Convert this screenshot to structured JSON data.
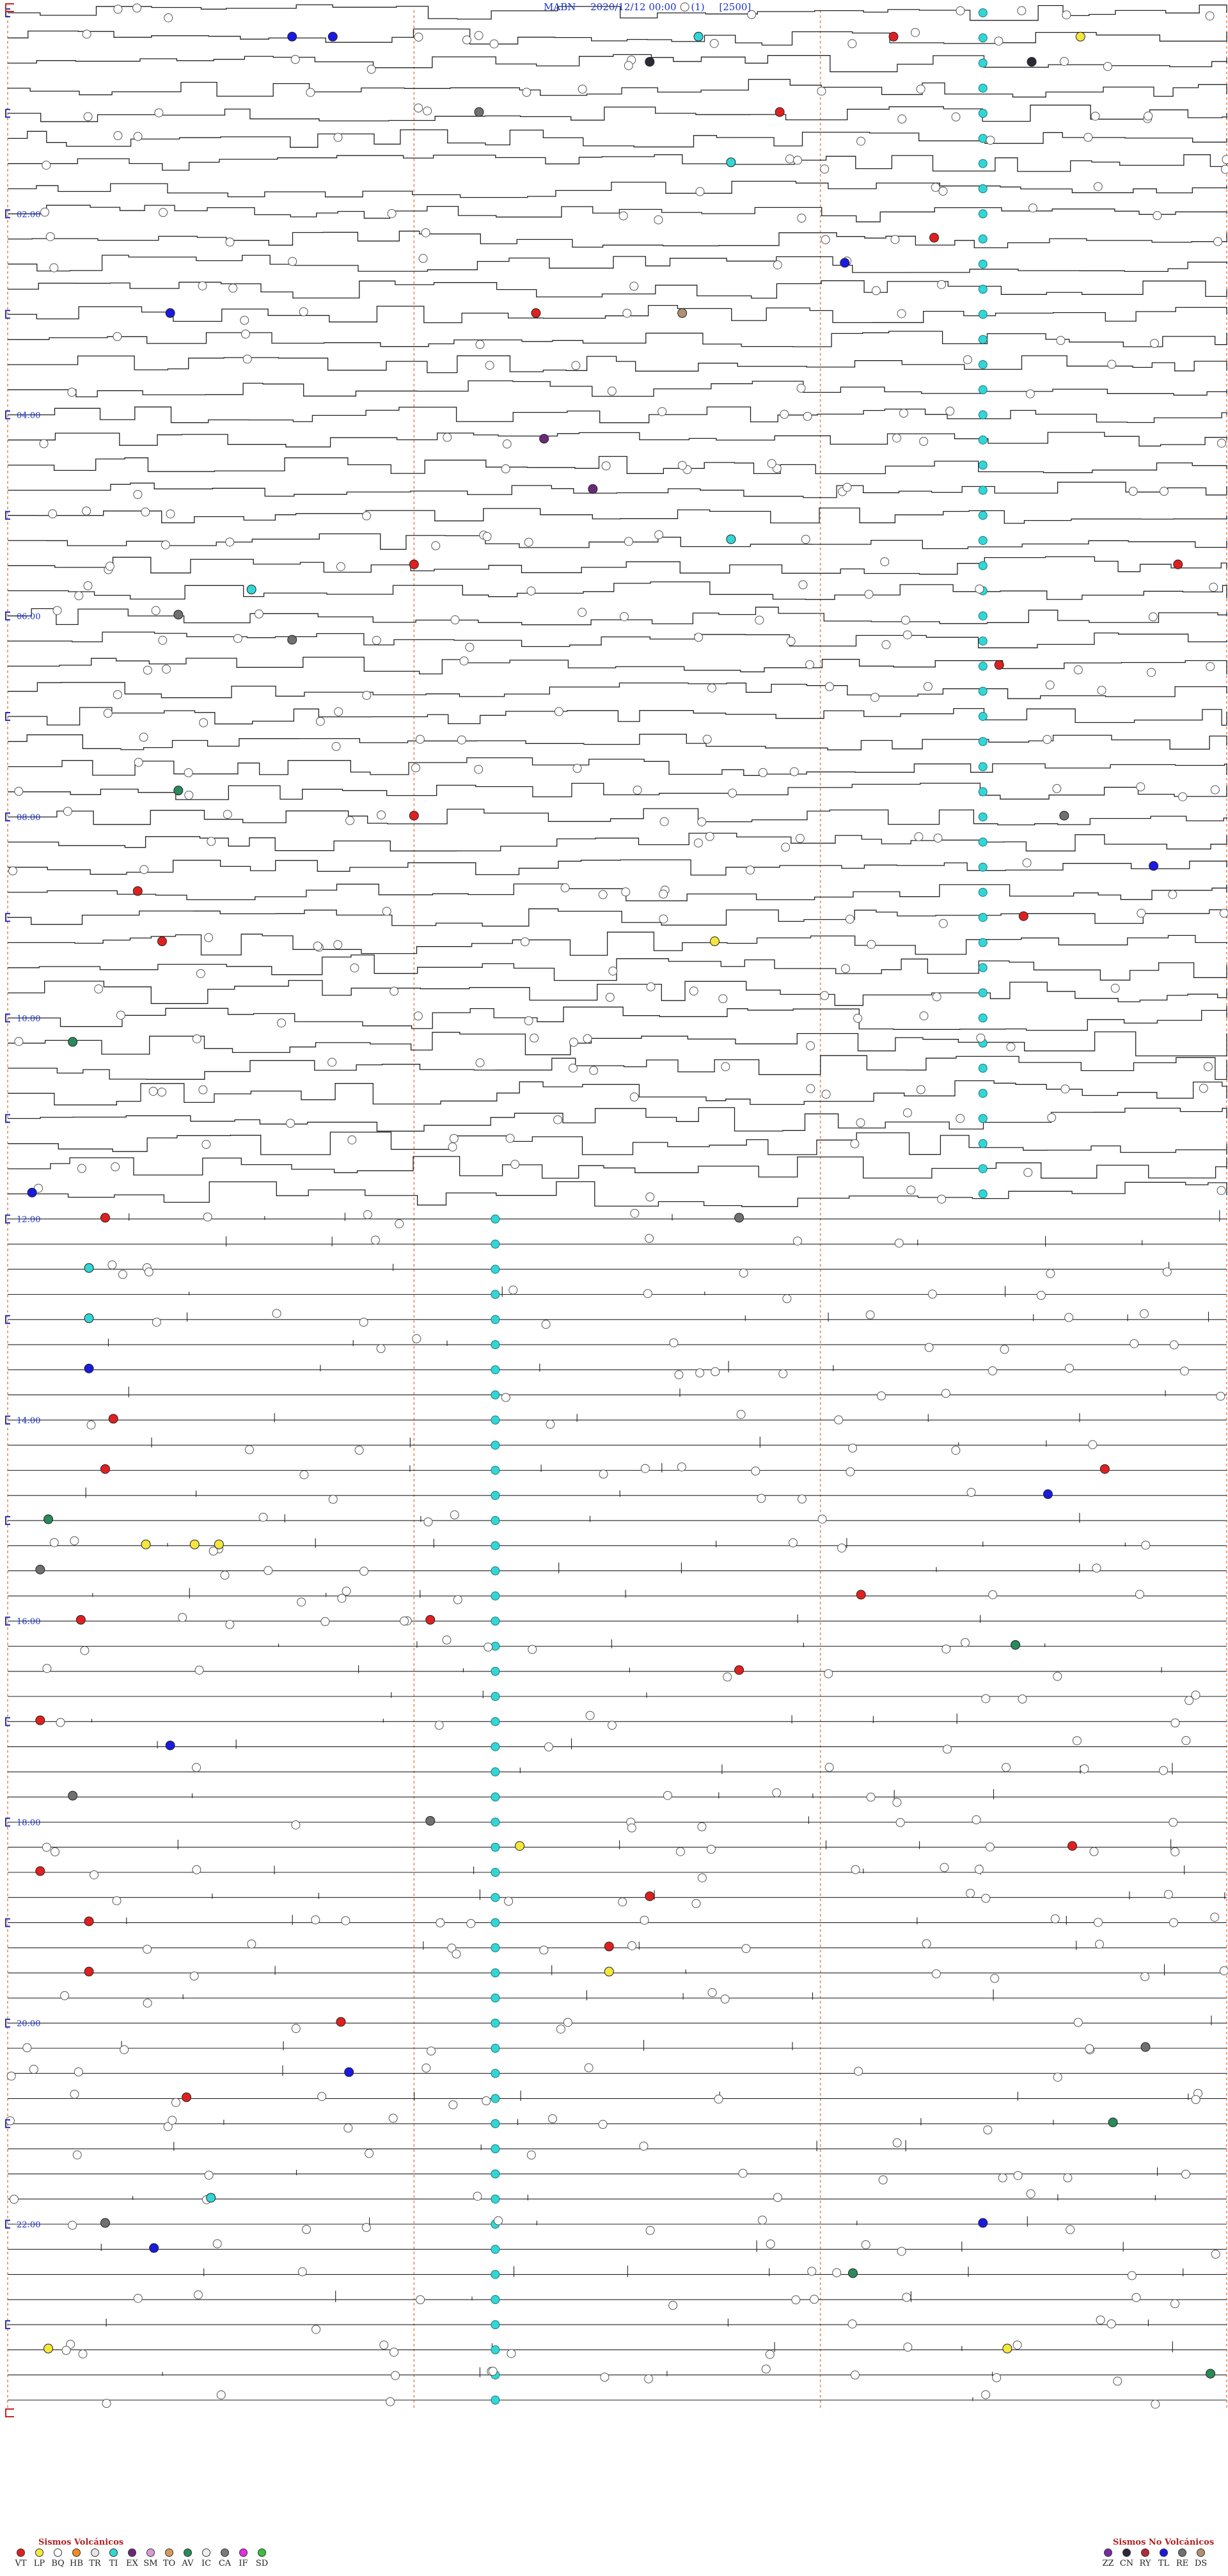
{
  "header": {
    "station": "MABN",
    "datetime": "2020/12/12 00:00",
    "channel": "(1)",
    "scale": "[2500]"
  },
  "legend": {
    "volcanic_title": "Sismos Volcánicos",
    "nonvolcanic_title": "Sismos No Volcánicos",
    "volcanic": [
      {
        "code": "VT",
        "color": "#e02020"
      },
      {
        "code": "LP",
        "color": "#f5e63c"
      },
      {
        "code": "BQ",
        "color": "#ffffff"
      },
      {
        "code": "HB",
        "color": "#f08a24"
      },
      {
        "code": "TR",
        "color": "#e6e6e6"
      },
      {
        "code": "TI",
        "color": "#33d6d6"
      },
      {
        "code": "EX",
        "color": "#6a2a7a"
      },
      {
        "code": "SM",
        "color": "#d89ad8"
      },
      {
        "code": "TO",
        "color": "#d89a5a"
      },
      {
        "code": "AV",
        "color": "#2a8a5a"
      },
      {
        "code": "IC",
        "color": "#f0f0f0"
      },
      {
        "code": "CA",
        "color": "#7a7a7a"
      },
      {
        "code": "IF",
        "color": "#e030e0"
      },
      {
        "code": "SD",
        "color": "#3cc03c"
      }
    ],
    "nonvolcanic": [
      {
        "code": "ZZ",
        "color": "#7a2aa0"
      },
      {
        "code": "CN",
        "color": "#2a2a3a"
      },
      {
        "code": "RY",
        "color": "#b02a40"
      },
      {
        "code": "TL",
        "color": "#1a1ae0"
      },
      {
        "code": "RE",
        "color": "#707070"
      },
      {
        "code": "DS",
        "color": "#b09070"
      }
    ]
  },
  "chart_data": {
    "type": "helicorder",
    "station": "MABN",
    "start": "2020/12/12 00:00",
    "rows": 96,
    "minutes_per_row": 15,
    "time_labels": [
      "02:00",
      "04:00",
      "06:00",
      "08:00",
      "10:00",
      "12:00",
      "14:00",
      "16:00",
      "18:00",
      "20:00",
      "22:00"
    ],
    "colors": {
      "trace": "#222222",
      "hour_marker": "#2233bb",
      "guide": "#e98a5a",
      "time_label": "#1a33cc"
    },
    "continuous_ti_column": [
      {
        "from_row": 0,
        "to_row": 48,
        "minute": 12
      },
      {
        "from_row": 48,
        "to_row": 96,
        "minute": 6
      }
    ],
    "events": [
      {
        "row": 1,
        "minute": 13.2,
        "type": "LP"
      },
      {
        "row": 1,
        "minute": 8.5,
        "type": "TI"
      },
      {
        "row": 1,
        "minute": 10.9,
        "type": "VT"
      },
      {
        "row": 1,
        "minute": 3.5,
        "type": "TL"
      },
      {
        "row": 1,
        "minute": 4,
        "type": "TL"
      },
      {
        "row": 2,
        "minute": 12.6,
        "type": "CN"
      },
      {
        "row": 2,
        "minute": 7.9,
        "type": "CN"
      },
      {
        "row": 4,
        "minute": 9.5,
        "type": "VT"
      },
      {
        "row": 4,
        "minute": 5.8,
        "type": "RE"
      },
      {
        "row": 6,
        "minute": 8.9,
        "type": "TI"
      },
      {
        "row": 9,
        "minute": 11.4,
        "type": "VT"
      },
      {
        "row": 10,
        "minute": 10.3,
        "type": "TL"
      },
      {
        "row": 12,
        "minute": 6.5,
        "type": "VT"
      },
      {
        "row": 12,
        "minute": 8.3,
        "type": "DS"
      },
      {
        "row": 12,
        "minute": 2,
        "type": "TL"
      },
      {
        "row": 17,
        "minute": 6.6,
        "type": "EX"
      },
      {
        "row": 19,
        "minute": 7.2,
        "type": "EX"
      },
      {
        "row": 21,
        "minute": 8.9,
        "type": "TI"
      },
      {
        "row": 22,
        "minute": 5,
        "type": "VT"
      },
      {
        "row": 22,
        "minute": 14.4,
        "type": "VT"
      },
      {
        "row": 23,
        "minute": 3,
        "type": "TI"
      },
      {
        "row": 24,
        "minute": 2.1,
        "type": "RE"
      },
      {
        "row": 25,
        "minute": 3.5,
        "type": "RE"
      },
      {
        "row": 26,
        "minute": 12.2,
        "type": "VT"
      },
      {
        "row": 31,
        "minute": 2.1,
        "type": "AV"
      },
      {
        "row": 32,
        "minute": 5,
        "type": "VT"
      },
      {
        "row": 32,
        "minute": 13,
        "type": "RE"
      },
      {
        "row": 34,
        "minute": 14.1,
        "type": "TL"
      },
      {
        "row": 35,
        "minute": 1.6,
        "type": "VT"
      },
      {
        "row": 36,
        "minute": 12.5,
        "type": "VT"
      },
      {
        "row": 37,
        "minute": 8.7,
        "type": "LP"
      },
      {
        "row": 37,
        "minute": 1.9,
        "type": "VT"
      },
      {
        "row": 41,
        "minute": 0.8,
        "type": "AV"
      },
      {
        "row": 47,
        "minute": 0.3,
        "type": "TL"
      },
      {
        "row": 48,
        "minute": 1.2,
        "type": "VT"
      },
      {
        "row": 48,
        "minute": 9,
        "type": "RE"
      },
      {
        "row": 50,
        "minute": 1,
        "type": "TI"
      },
      {
        "row": 52,
        "minute": 1,
        "type": "TI"
      },
      {
        "row": 54,
        "minute": 1,
        "type": "TL"
      },
      {
        "row": 56,
        "minute": 1.3,
        "type": "VT"
      },
      {
        "row": 58,
        "minute": 1.2,
        "type": "VT"
      },
      {
        "row": 58,
        "minute": 13.5,
        "type": "VT"
      },
      {
        "row": 59,
        "minute": 12.8,
        "type": "TL"
      },
      {
        "row": 60,
        "minute": 0.5,
        "type": "AV"
      },
      {
        "row": 61,
        "minute": 1.7,
        "type": "LP"
      },
      {
        "row": 61,
        "minute": 2.3,
        "type": "LP"
      },
      {
        "row": 61,
        "minute": 2.6,
        "type": "LP"
      },
      {
        "row": 62,
        "minute": 0.4,
        "type": "RE"
      },
      {
        "row": 63,
        "minute": 10.5,
        "type": "VT"
      },
      {
        "row": 64,
        "minute": 0.9,
        "type": "VT"
      },
      {
        "row": 64,
        "minute": 5.2,
        "type": "VT"
      },
      {
        "row": 65,
        "minute": 12.4,
        "type": "AV"
      },
      {
        "row": 66,
        "minute": 9,
        "type": "VT"
      },
      {
        "row": 68,
        "minute": 0.4,
        "type": "VT"
      },
      {
        "row": 69,
        "minute": 2,
        "type": "TL"
      },
      {
        "row": 71,
        "minute": 0.8,
        "type": "RE"
      },
      {
        "row": 72,
        "minute": 5.2,
        "type": "RE"
      },
      {
        "row": 73,
        "minute": 6.3,
        "type": "LP"
      },
      {
        "row": 73,
        "minute": 13.1,
        "type": "VT"
      },
      {
        "row": 74,
        "minute": 0.4,
        "type": "VT"
      },
      {
        "row": 75,
        "minute": 7.9,
        "type": "VT"
      },
      {
        "row": 76,
        "minute": 1,
        "type": "VT"
      },
      {
        "row": 77,
        "minute": 7.4,
        "type": "VT"
      },
      {
        "row": 78,
        "minute": 1,
        "type": "VT"
      },
      {
        "row": 78,
        "minute": 7.4,
        "type": "LP"
      },
      {
        "row": 80,
        "minute": 4.1,
        "type": "VT"
      },
      {
        "row": 81,
        "minute": 14,
        "type": "RE"
      },
      {
        "row": 82,
        "minute": 4.2,
        "type": "TL"
      },
      {
        "row": 83,
        "minute": 2.2,
        "type": "VT"
      },
      {
        "row": 84,
        "minute": 13.6,
        "type": "AV"
      },
      {
        "row": 87,
        "minute": 2.5,
        "type": "TI"
      },
      {
        "row": 88,
        "minute": 1.2,
        "type": "RE"
      },
      {
        "row": 88,
        "minute": 12,
        "type": "TL"
      },
      {
        "row": 89,
        "minute": 1.8,
        "type": "TL"
      },
      {
        "row": 90,
        "minute": 10.4,
        "type": "AV"
      },
      {
        "row": 93,
        "minute": 0.5,
        "type": "LP"
      },
      {
        "row": 93,
        "minute": 12.3,
        "type": "LP"
      },
      {
        "row": 94,
        "minute": 14.8,
        "type": "AV"
      }
    ]
  }
}
